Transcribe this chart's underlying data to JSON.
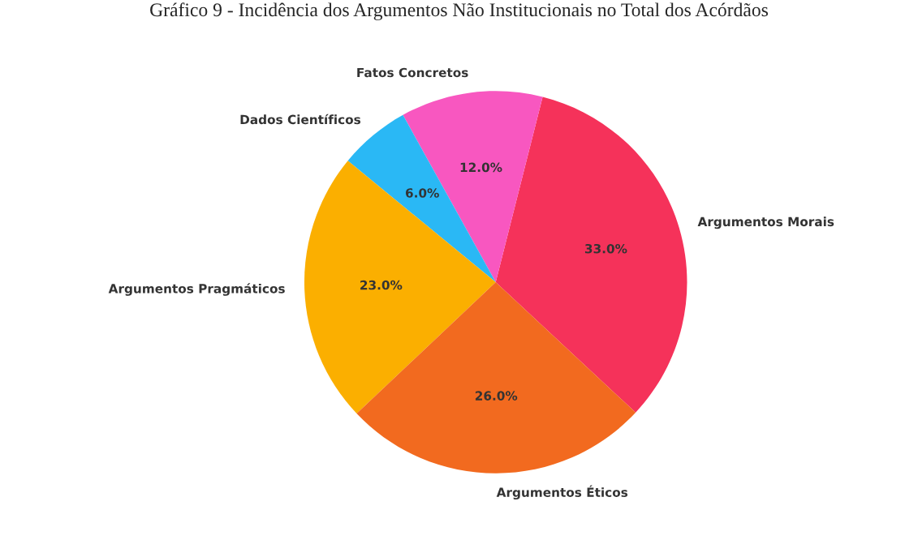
{
  "chart_data": {
    "type": "pie",
    "title": "Gráfico 9 - Incidência dos Argumentos Não Institucionais no Total dos Acórdãos",
    "categories": [
      "Argumentos Morais",
      "Fatos Concretos",
      "Dados Científicos",
      "Argumentos Pragmáticos",
      "Argumentos Éticos"
    ],
    "values": [
      33,
      12,
      6,
      23,
      26
    ],
    "value_labels": [
      "33.0%",
      "12.0%",
      "6.0%",
      "23.0%",
      "26.0%"
    ],
    "colors": [
      "#f5325a",
      "#f857c0",
      "#2ab8f5",
      "#fbaf00",
      "#f26a1f"
    ]
  }
}
